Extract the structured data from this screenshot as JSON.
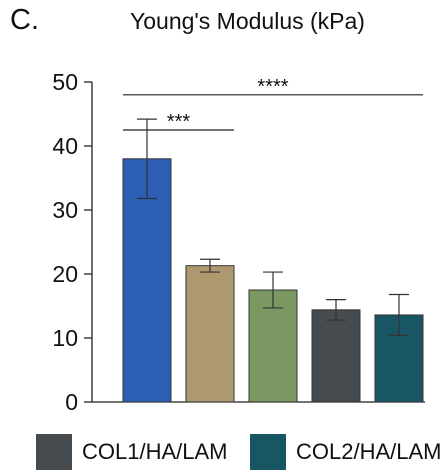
{
  "panel_label": "C.",
  "chart_data": {
    "type": "bar",
    "title": "Young's Modulus (kPa)",
    "xlabel": "",
    "ylabel": "",
    "ylim": [
      0,
      50
    ],
    "yticks": [
      0,
      10,
      20,
      30,
      40,
      50
    ],
    "grid": false,
    "categories": [
      "",
      "",
      "",
      "",
      ""
    ],
    "values": [
      38,
      21.3,
      17.5,
      14.4,
      13.6
    ],
    "errors": [
      6.2,
      1,
      2.8,
      1.6,
      3.2
    ],
    "colors": [
      "#2c5fb4",
      "#ad986f",
      "#7b9862",
      "#454b4f",
      "#195663"
    ],
    "significance": [
      {
        "from": 0,
        "to": 1,
        "y": 42.5,
        "label": "***"
      },
      {
        "from": 0,
        "to": 4,
        "y": 48,
        "label": "****"
      }
    ],
    "legend": {
      "placement": "bottom",
      "entries": [
        {
          "label": "COL1/HA/LAM",
          "color": "#454b4f"
        },
        {
          "label": "COL2/HA/LAM",
          "color": "#195663"
        }
      ]
    }
  }
}
